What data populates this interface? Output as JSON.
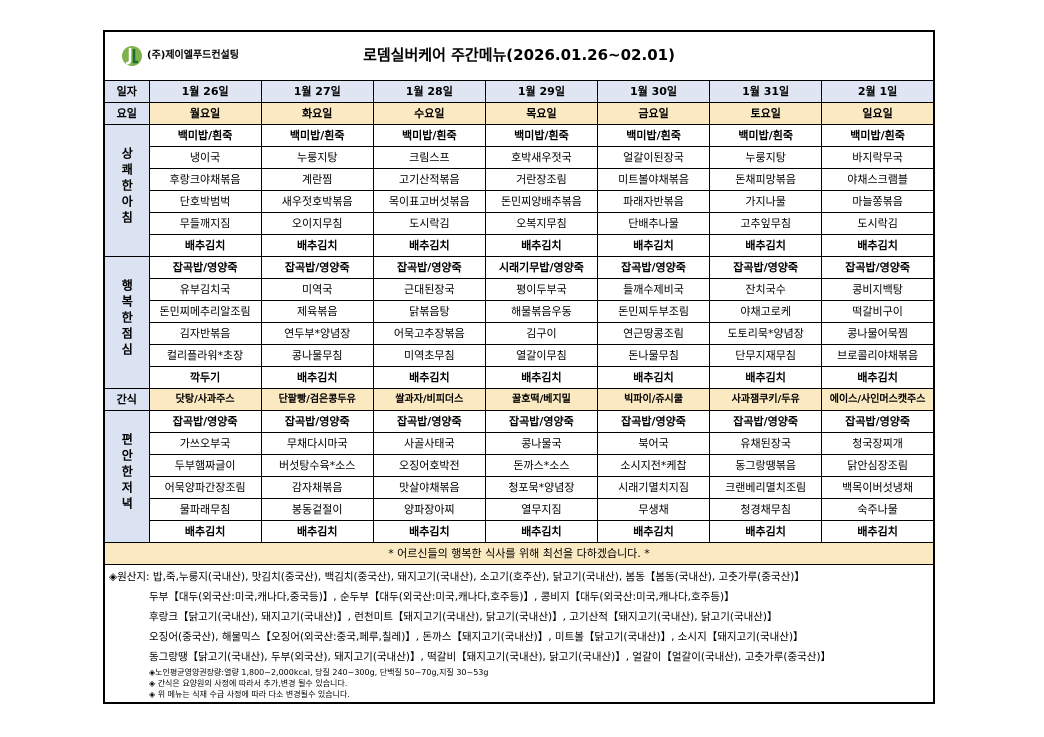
{
  "header": {
    "logo_text": "(주)제이엘푸드컨설팅",
    "title": "로뎀실버케어 주간메뉴(2026.01.26~02.01)"
  },
  "table": {
    "date_label": "일자",
    "dates": [
      "1월 26일",
      "1월 27일",
      "1월 28일",
      "1월 29일",
      "1월 30일",
      "1월 31일",
      "2월 1일"
    ],
    "day_label": "요일",
    "days": [
      "월요일",
      "화요일",
      "수요일",
      "목요일",
      "금요일",
      "토요일",
      "일요일"
    ],
    "meals": [
      {
        "label": "상쾌한아침",
        "rows": [
          [
            "백미밥/흰죽",
            "백미밥/흰죽",
            "백미밥/흰죽",
            "백미밥/흰죽",
            "백미밥/흰죽",
            "백미밥/흰죽",
            "백미밥/흰죽"
          ],
          [
            "냉이국",
            "누룽지탕",
            "크림스프",
            "호박새우젓국",
            "얼갈이된장국",
            "누룽지탕",
            "바지락무국"
          ],
          [
            "후랑크야채볶음",
            "계란찜",
            "고기산적볶음",
            "거란장조림",
            "미트볼야채볶음",
            "돈채피망볶음",
            "야채스크램블"
          ],
          [
            "단호박범벅",
            "새우젓호박볶음",
            "목이표고버섯볶음",
            "돈민찌양배추볶음",
            "파래자반볶음",
            "가지나물",
            "마늘쫑볶음"
          ],
          [
            "무들깨지짐",
            "오이지무침",
            "도시락김",
            "오복지무침",
            "단배추나물",
            "고추잎무침",
            "도시락김"
          ],
          [
            "배추김치",
            "배추김치",
            "배추김치",
            "배추김치",
            "배추김치",
            "배추김치",
            "배추김치"
          ]
        ]
      },
      {
        "label": "행복한점심",
        "rows": [
          [
            "잡곡밥/영양죽",
            "잡곡밥/영양죽",
            "잡곡밥/영양죽",
            "시래기무밥/영양죽",
            "잡곡밥/영양죽",
            "잡곡밥/영양죽",
            "잡곡밥/영양죽"
          ],
          [
            "유부김치국",
            "미역국",
            "근대된장국",
            "평이두부국",
            "들깨수제비국",
            "잔치국수",
            "콩비지백탕"
          ],
          [
            "돈민찌메추리알조림",
            "제육볶음",
            "닭볶음탕",
            "해물볶음우동",
            "돈민찌두부조림",
            "야채고로케",
            "떡갈비구이"
          ],
          [
            "김자반볶음",
            "연두부*양념장",
            "어묵고추장볶음",
            "김구이",
            "연근땅콩조림",
            "도토리묵*양념장",
            "콩나물어묵찜"
          ],
          [
            "컬리플라워*초장",
            "콩나물무침",
            "미역초무침",
            "열갈이무침",
            "돈나물무침",
            "단무지재무침",
            "브로콜리야채볶음"
          ],
          [
            "깍두기",
            "배추김치",
            "배추김치",
            "배추김치",
            "배추김치",
            "배추김치",
            "배추김치"
          ]
        ]
      }
    ],
    "snack": {
      "label": "간식",
      "items": [
        "닷탕/사과주스",
        "단팥빵/검은콩두유",
        "쌀과자/비피더스",
        "꿀호떡/베지밀",
        "빅파이/쥬시쿨",
        "사과잼쿠키/두유",
        "에이스/사인머스캣주스"
      ]
    },
    "dinner": {
      "label": "편안한저녁",
      "rows": [
        [
          "잡곡밥/영양죽",
          "잡곡밥/영양죽",
          "잡곡밥/영양죽",
          "잡곡밥/영양죽",
          "잡곡밥/영양죽",
          "잡곡밥/영양죽",
          "잡곡밥/영양죽"
        ],
        [
          "가쓰오부국",
          "무채다시마국",
          "사골사태국",
          "콩나물국",
          "북어국",
          "유채된장국",
          "청국장찌개"
        ],
        [
          "두부햄짜글이",
          "버섯탕수육*소스",
          "오징어호박전",
          "돈까스*소스",
          "소시지전*케찹",
          "동그랑땡볶음",
          "닭안심장조림"
        ],
        [
          "어묵양파간장조림",
          "감자채볶음",
          "맛살야채볶음",
          "청포묵*양념장",
          "시래기멸치지짐",
          "크랜베리멸치조림",
          "백목이버섯냉채"
        ],
        [
          "물파래무침",
          "봉동겉절이",
          "양파장아찌",
          "열무지짐",
          "무생채",
          "청경채무침",
          "숙주나물"
        ],
        [
          "배추김치",
          "배추김치",
          "배추김치",
          "배추김치",
          "배추김치",
          "배추김치",
          "배추김치"
        ]
      ]
    },
    "notice": "* 어르신들의 행복한 식사를 위해 최선을 다하겠습니다. *"
  },
  "origin": {
    "lines": [
      "◈원산지: 밥,죽,누룽지(국내산), 맛김치(중국산), 백김치(중국산), 돼지고기(국내산), 소고기(호주산), 닭고기(국내산),  봄동【봄동(국내산), 고춧가루(중국산)】",
      "두부【대두(외국산:미국,캐나다,중국등)】, 순두부【대두(외국산:미국,캐나다,호주등)】, 콩비지【대두(외국산:미국,캐나다,호주등)】",
      "후랑크【닭고기(국내산), 돼지고기(국내산)】, 런천미트【돼지고기(국내산), 닭고기(국내산)】, 고기산적【돼지고기(국내산), 닭고기(국내산)】",
      "오징어(중국산), 해물믹스【오징어(외국산:중국,페루,칠레)】, 돈까스【돼지고기(국내산)】, 미트볼【닭고기(국내산)】, 소시지【돼지고기(국내산)】",
      "동그랑땡【닭고기(국내산), 두부(외국산), 돼지고기(국내산)】, 떡갈비【돼지고기(국내산), 닭고기(국내산)】, 얼갈이【얼갈이(국내산), 고춧가루(중국산)】"
    ],
    "notes": [
      "◈노인평균영양권장량:열량 1,800~2,000kcal, 당질 240~300g, 단백질 50~70g,지질 30~53g",
      "◈ 간식은 요양원의 사정에 따라서 추가,변경 될수 있습니다.",
      "◈ 위 메뉴는 식재 수급 사정에 따라 다소 변경될수 있습니다."
    ]
  }
}
